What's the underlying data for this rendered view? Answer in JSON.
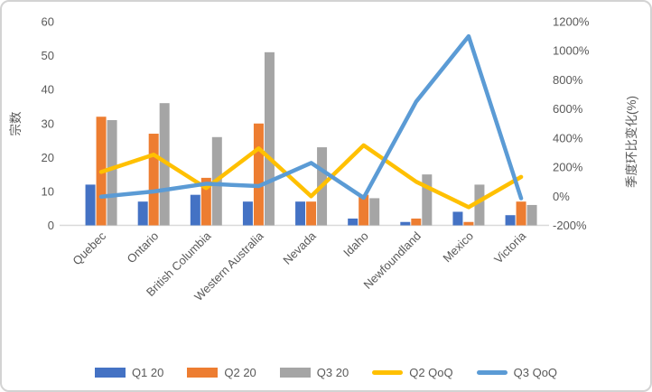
{
  "chart_data": {
    "type": "combo-bar-line",
    "categories": [
      "Quebec",
      "Ontario",
      "British Columbia",
      "Western Australia",
      "Nevada",
      "Idaho",
      "Newfoundland",
      "Mexico",
      "Victoria"
    ],
    "bar_series": [
      {
        "name": "Q1 20",
        "color": "#4472C4",
        "axis": "left",
        "values": [
          12,
          7,
          9,
          7,
          7,
          2,
          1,
          4,
          3
        ]
      },
      {
        "name": "Q2 20",
        "color": "#ED7D31",
        "axis": "left",
        "values": [
          32,
          27,
          14,
          30,
          7,
          9,
          2,
          1,
          7
        ]
      },
      {
        "name": "Q3 20",
        "color": "#A5A5A5",
        "axis": "left",
        "values": [
          31,
          36,
          26,
          51,
          23,
          8,
          15,
          12,
          6
        ]
      }
    ],
    "line_series": [
      {
        "name": "Q2 QoQ",
        "color": "#FFC000",
        "axis": "right",
        "values": [
          167,
          286,
          56,
          329,
          0,
          350,
          100,
          -75,
          133
        ]
      },
      {
        "name": "Q3 QoQ",
        "color": "#5B9BD5",
        "axis": "right",
        "values": [
          -3,
          33,
          86,
          70,
          229,
          -11,
          650,
          1100,
          -14
        ]
      }
    ],
    "left_axis": {
      "title": "宗数",
      "min": 0,
      "max": 60,
      "step": 10,
      "ticks": [
        "60",
        "50",
        "40",
        "30",
        "20",
        "10",
        "0"
      ]
    },
    "right_axis": {
      "title": "季度环比变化(%)",
      "min": -200,
      "max": 1200,
      "step": 200,
      "ticks": [
        "1200%",
        "1000%",
        "800%",
        "600%",
        "400%",
        "200%",
        "0%",
        "-200%"
      ]
    },
    "legend": [
      "Q1 20",
      "Q2 20",
      "Q3 20",
      "Q2 QoQ",
      "Q3 QoQ"
    ],
    "legend_position": "bottom",
    "grid": false,
    "colors": {
      "axis_text": "#595959",
      "axis_line": "#d9d9d9",
      "frame_border": "#d3d3d3",
      "background": "#ffffff"
    }
  }
}
